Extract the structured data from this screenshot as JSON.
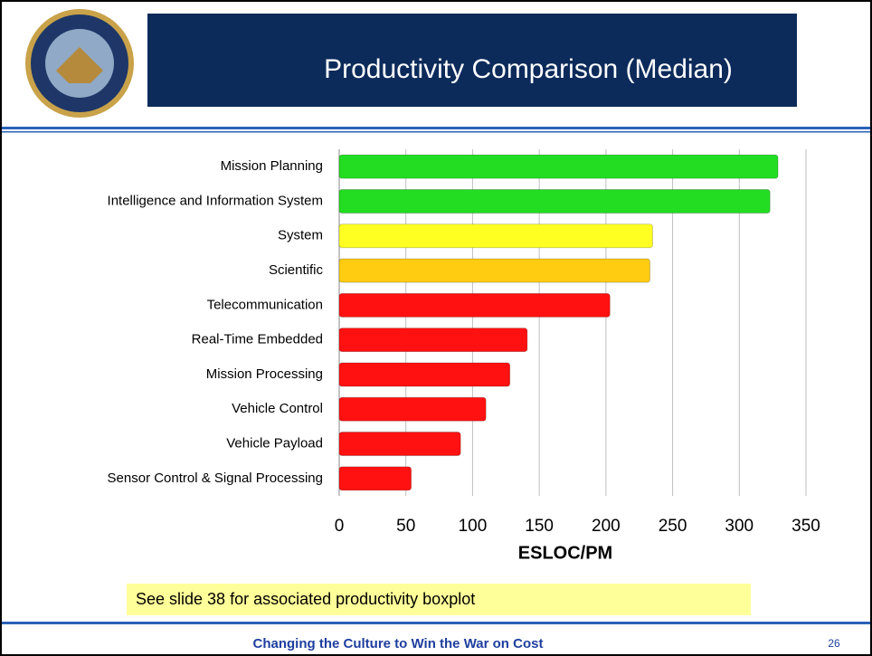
{
  "chart_data": {
    "type": "hbar",
    "title": "Productivity Comparison (Median)",
    "categories": [
      "Mission Planning",
      "Intelligence and Information System",
      "System",
      "Scientific",
      "Telecommunication",
      "Real-Time Embedded",
      "Mission Processing",
      "Vehicle Control",
      "Vehicle Payload",
      "Sensor Control & Signal Processing"
    ],
    "values": [
      329,
      323,
      235,
      233,
      203,
      141,
      128,
      110,
      91,
      54
    ],
    "colors": [
      "#22dd22",
      "#22dd22",
      "#ffff22",
      "#ffcc11",
      "#ff1111",
      "#ff1111",
      "#ff1111",
      "#ff1111",
      "#ff1111",
      "#ff1111"
    ],
    "xlabel": "ESLOC/PM",
    "xlim": [
      0,
      350
    ],
    "xticks": [
      0,
      50,
      100,
      150,
      200,
      250,
      300,
      350
    ],
    "grid": true
  },
  "note": "See slide 38 for associated productivity boxplot",
  "footer": "Changing the Culture to Win the War on Cost",
  "page_number": "26"
}
